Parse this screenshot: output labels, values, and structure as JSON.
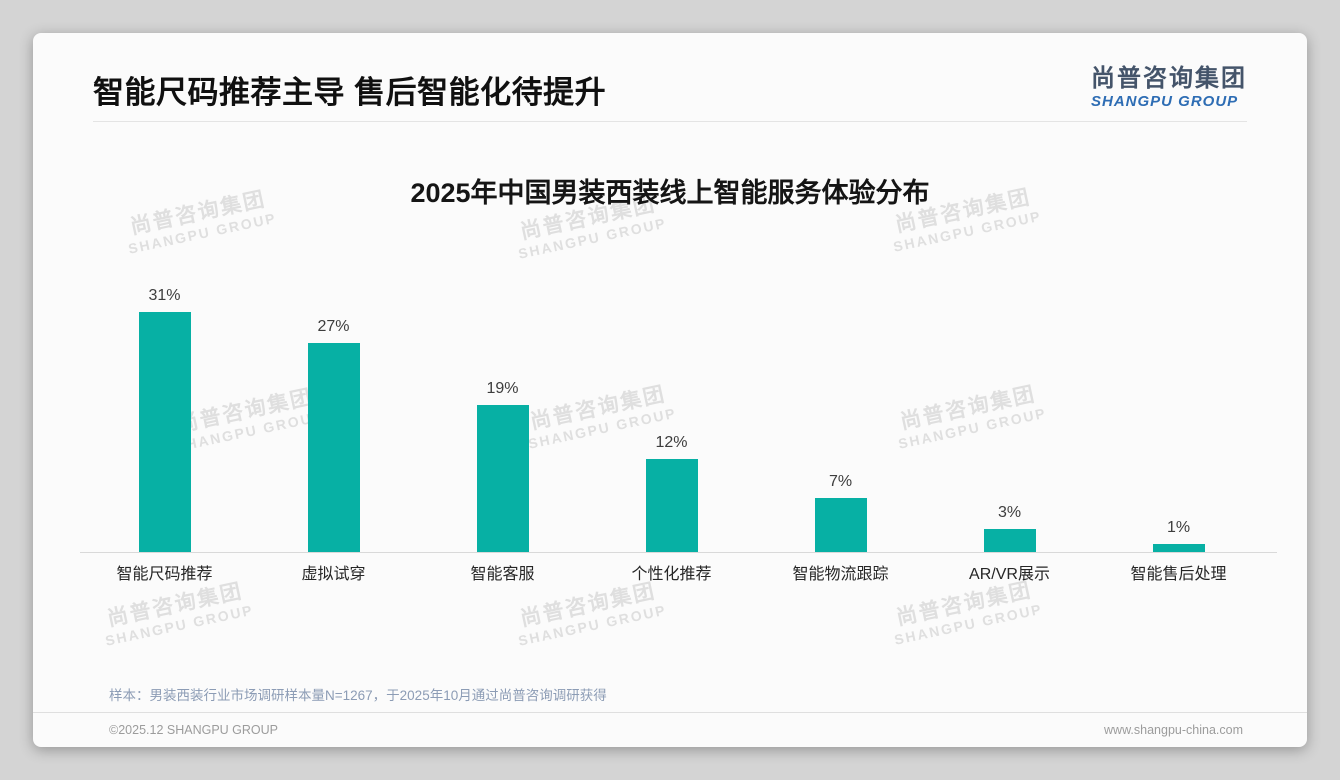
{
  "header": {
    "title": "智能尺码推荐主导 售后智能化待提升",
    "logo_cn": "尚普咨询集团",
    "logo_en": "SHANGPU GROUP"
  },
  "watermark": {
    "cn": "尚普咨询集团",
    "en": "SHANGPU GROUP"
  },
  "chart_data": {
    "type": "bar",
    "title": "2025年中国男装西装线上智能服务体验分布",
    "categories": [
      "智能尺码推荐",
      "虚拟试穿",
      "智能客服",
      "个性化推荐",
      "智能物流跟踪",
      "AR/VR展示",
      "智能售后处理"
    ],
    "values": [
      31,
      27,
      19,
      12,
      7,
      3,
      1
    ],
    "value_labels": [
      "31%",
      "27%",
      "19%",
      "12%",
      "7%",
      "3%",
      "1%"
    ],
    "unit": "%",
    "bar_color": "#07b0a4",
    "ylim": [
      0,
      33
    ],
    "grid": false,
    "legend": false
  },
  "note": "样本：男装西装行业市场调研样本量N=1267，于2025年10月通过尚普咨询调研获得",
  "footer": {
    "copyright": "©2025.12 SHANGPU GROUP",
    "website": "www.shangpu-china.com"
  }
}
